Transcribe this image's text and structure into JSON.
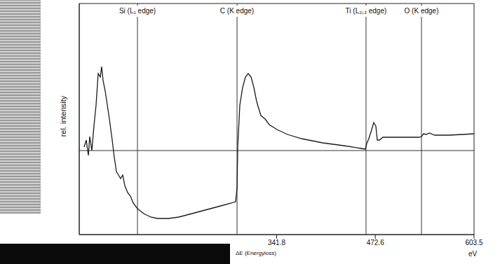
{
  "chart_data": {
    "type": "line",
    "y_label": "rel. intensity",
    "x_label": "ΔE (Energyloss)",
    "x_unit": "eV",
    "color": "#1a1a1a",
    "grid": false,
    "tick_labels": "x",
    "xlim": [
      80.1,
      603.5
    ],
    "xticks": [
      341.8,
      472.6,
      603.5
    ],
    "ylim": [
      -1.2,
      2.1
    ],
    "baseline": 0,
    "annotations": [
      {
        "label": "Si (L₁ edge)",
        "x": 157.3
      },
      {
        "label": "C (K edge)",
        "x": 289.3
      },
      {
        "label": "Ti (L₂,₃ edge)",
        "x": 460.3
      },
      {
        "label": "O (K edge)",
        "x": 533.8
      }
    ],
    "x": [
      86.6,
      89.4,
      92.2,
      94.0,
      96.8,
      99.6,
      102.4,
      105.2,
      108.0,
      109.8,
      111.7,
      114.5,
      117.3,
      120.1,
      123.8,
      126.6,
      129.4,
      132.2,
      134.9,
      137.7,
      140.5,
      144.2,
      148.0,
      151.7,
      157.3,
      165.6,
      174.9,
      184.2,
      198.2,
      212.1,
      226.1,
      240.0,
      253.9,
      267.9,
      281.8,
      287.4,
      289.3,
      290.2,
      293.0,
      296.7,
      300.4,
      304.1,
      307.9,
      311.6,
      315.3,
      320.9,
      326.5,
      332.0,
      342.3,
      356.2,
      374.8,
      402.7,
      430.6,
      453.8,
      459.4,
      461.2,
      464.0,
      467.8,
      470.5,
      473.3,
      475.2,
      478.0,
      482.6,
      495.6,
      514.2,
      531.0,
      533.8,
      536.5,
      540.3,
      544.0,
      551.4,
      570.0,
      588.6,
      603.5
    ],
    "values": [
      0.05,
      0.15,
      -0.07,
      0.2,
      0.0,
      0.35,
      0.65,
      1.1,
      1.05,
      1.2,
      1.0,
      0.85,
      0.65,
      0.45,
      0.15,
      -0.1,
      -0.3,
      -0.35,
      -0.4,
      -0.35,
      -0.5,
      -0.6,
      -0.65,
      -0.75,
      -0.83,
      -0.9,
      -0.95,
      -0.97,
      -0.97,
      -0.95,
      -0.91,
      -0.87,
      -0.83,
      -0.79,
      -0.75,
      -0.73,
      -0.53,
      0.05,
      0.65,
      0.9,
      1.05,
      1.1,
      1.05,
      0.9,
      0.7,
      0.5,
      0.45,
      0.37,
      0.3,
      0.23,
      0.17,
      0.11,
      0.07,
      0.03,
      0.02,
      0.1,
      0.17,
      0.3,
      0.4,
      0.35,
      0.15,
      0.15,
      0.19,
      0.19,
      0.19,
      0.19,
      0.2,
      0.24,
      0.23,
      0.25,
      0.22,
      0.22,
      0.23,
      0.24
    ]
  }
}
